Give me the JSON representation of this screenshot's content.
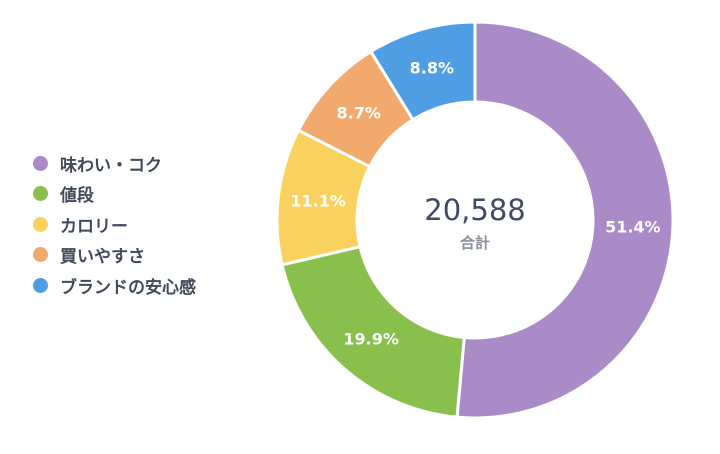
{
  "chart_data": {
    "type": "pie",
    "style": "donut",
    "categories": [
      "味わい・コク",
      "値段",
      "カロリー",
      "買いやすさ",
      "ブランドの安心感"
    ],
    "values": [
      51.4,
      19.9,
      11.1,
      8.7,
      8.8
    ],
    "value_labels": [
      "51.4%",
      "19.9%",
      "11.1%",
      "8.7%",
      "8.8%"
    ],
    "colors": [
      "#a98bc8",
      "#88bf4d",
      "#f8d15f",
      "#f1a96e",
      "#4f9ee3"
    ],
    "legend_position": "left",
    "center": {
      "value": "20,588",
      "label": "合計"
    }
  }
}
